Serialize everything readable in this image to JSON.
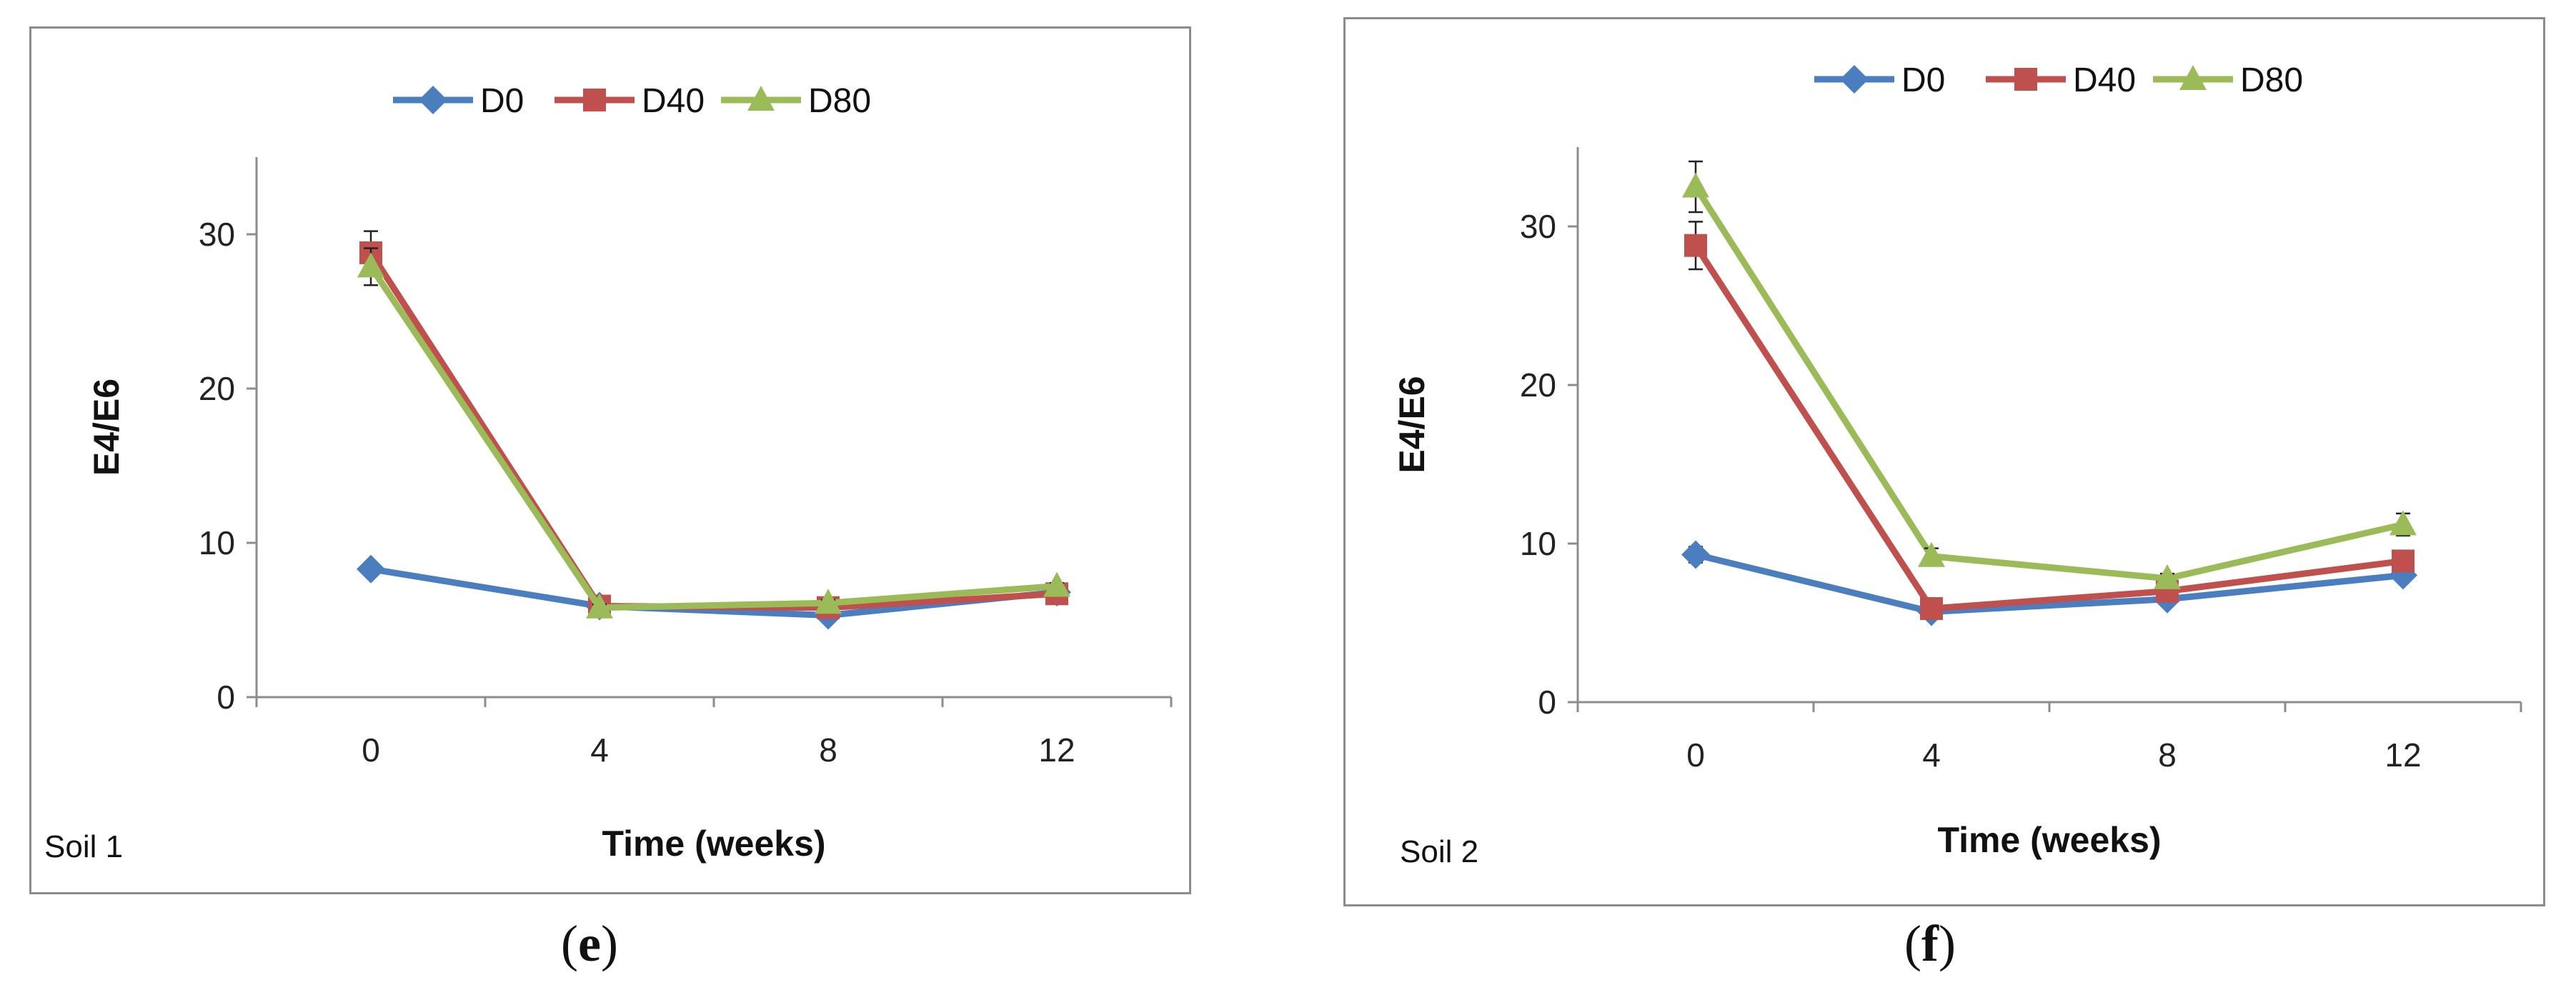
{
  "colors": {
    "D0": "#4a7ebf",
    "D40": "#c0504d",
    "D80": "#9bbb59",
    "axis": "#8c8c8c"
  },
  "chart_data": [
    {
      "type": "line",
      "panel_label": "e",
      "corner_label": "Soil 1",
      "title": "",
      "xlabel": "Time (weeks)",
      "ylabel": "E4/E6",
      "categories": [
        "0",
        "4",
        "8",
        "12"
      ],
      "ylim": [
        0,
        35
      ],
      "yticks": [
        "0",
        "10",
        "20",
        "30"
      ],
      "legend_position": "top-center",
      "series": [
        {
          "name": "D0",
          "marker": "diamond",
          "values": [
            8.3,
            5.9,
            5.3,
            6.8
          ],
          "errors": [
            0.3,
            0.2,
            0.2,
            0.2
          ]
        },
        {
          "name": "D40",
          "marker": "square",
          "values": [
            28.8,
            5.9,
            5.8,
            6.7
          ],
          "errors": [
            1.4,
            0.2,
            0.2,
            0.2
          ]
        },
        {
          "name": "D80",
          "marker": "triangle",
          "values": [
            27.9,
            5.8,
            6.1,
            7.2
          ],
          "errors": [
            1.2,
            0.2,
            0.2,
            0.2
          ]
        }
      ]
    },
    {
      "type": "line",
      "panel_label": "f",
      "corner_label": "Soil 2",
      "title": "",
      "xlabel": "Time (weeks)",
      "ylabel": "E4/E6",
      "categories": [
        "0",
        "4",
        "8",
        "12"
      ],
      "ylim": [
        0,
        35
      ],
      "yticks": [
        "0",
        "10",
        "20",
        "30"
      ],
      "legend_position": "top-right",
      "series": [
        {
          "name": "D0",
          "marker": "diamond",
          "values": [
            9.3,
            5.7,
            6.5,
            8.0
          ],
          "errors": [
            0.5,
            0.3,
            0.2,
            0.3
          ]
        },
        {
          "name": "D40",
          "marker": "square",
          "values": [
            28.8,
            5.9,
            7.0,
            8.9
          ],
          "errors": [
            1.5,
            0.3,
            0.3,
            0.3
          ]
        },
        {
          "name": "D80",
          "marker": "triangle",
          "values": [
            32.5,
            9.2,
            7.8,
            11.2
          ],
          "errors": [
            1.6,
            0.5,
            0.3,
            0.7
          ]
        }
      ]
    }
  ]
}
